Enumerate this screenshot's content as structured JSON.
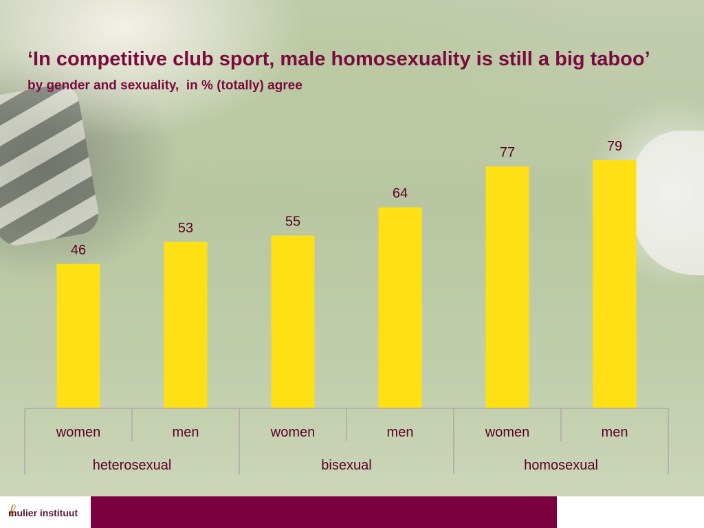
{
  "title": "‘In competitive club sport, male homosexuality is still a big taboo’",
  "subtitle": "by gender and sexuality,  in % (totally) agree",
  "logo_text": "mulier instituut",
  "colors": {
    "bar": "#ffe014",
    "title": "#7a0b3e",
    "footer": "#7a0040",
    "axis": "#b0a8a8"
  },
  "chart_data": {
    "type": "bar",
    "title": "‘In competitive club sport, male homosexuality is still a big taboo’",
    "subtitle": "by gender and sexuality,  in % (totally) agree",
    "categories": [
      "women",
      "men",
      "women",
      "men",
      "women",
      "men"
    ],
    "groups": [
      {
        "label": "heterosexual",
        "span": [
          0,
          1
        ]
      },
      {
        "label": "bisexual",
        "span": [
          2,
          3
        ]
      },
      {
        "label": "homosexual",
        "span": [
          4,
          5
        ]
      }
    ],
    "values": [
      46,
      53,
      55,
      64,
      77,
      79
    ],
    "data_labels": true,
    "ylim": [
      0,
      100
    ],
    "grid": false,
    "legend": "none"
  }
}
